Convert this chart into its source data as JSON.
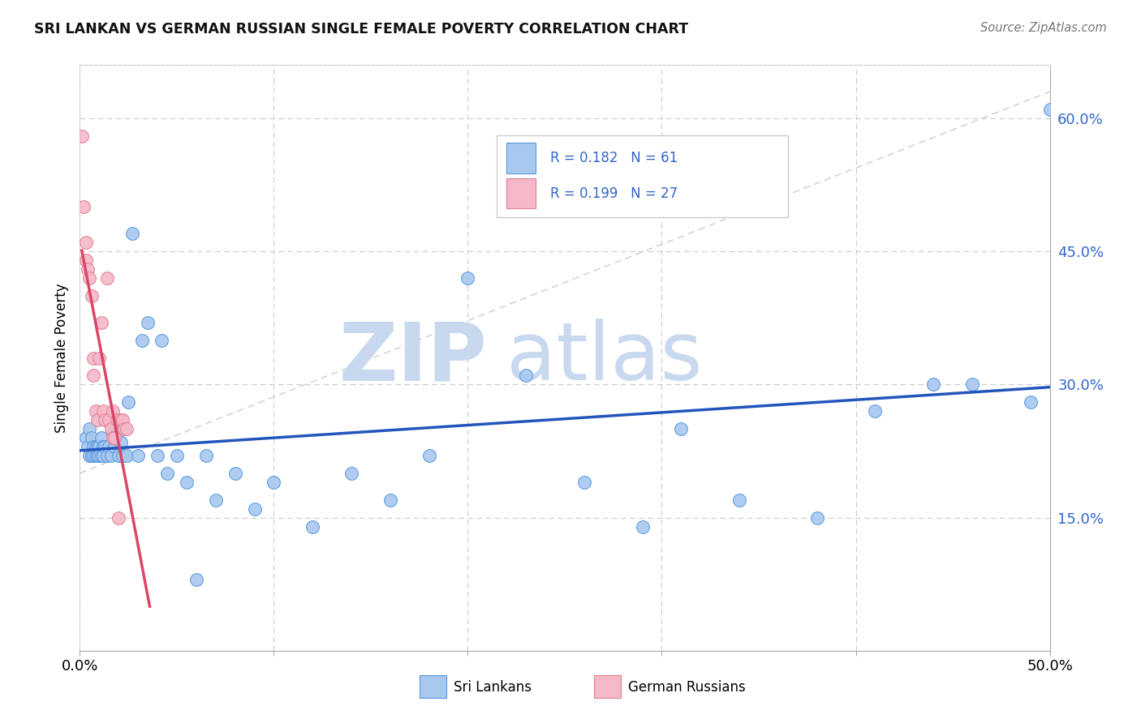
{
  "title": "SRI LANKAN VS GERMAN RUSSIAN SINGLE FEMALE POVERTY CORRELATION CHART",
  "source": "Source: ZipAtlas.com",
  "ylabel": "Single Female Poverty",
  "right_yticks": [
    "60.0%",
    "45.0%",
    "30.0%",
    "15.0%"
  ],
  "right_ytick_vals": [
    0.6,
    0.45,
    0.3,
    0.15
  ],
  "legend_blue_r": "R = 0.182",
  "legend_blue_n": "N = 61",
  "legend_pink_r": "R = 0.199",
  "legend_pink_n": "N = 27",
  "legend_label_blue": "Sri Lankans",
  "legend_label_pink": "German Russians",
  "blue_scatter_color": "#a8c8f0",
  "pink_scatter_color": "#f5b8c8",
  "blue_edge_color": "#5599dd",
  "pink_edge_color": "#e08090",
  "line_blue_color": "#2255bb",
  "line_pink_color": "#dd4466",
  "line_dashed_color": "#cccccc",
  "watermark_zip_color": "#c8d8ee",
  "watermark_atlas_color": "#c8d8ee",
  "grid_color": "#cccccc",
  "title_color": "#111111",
  "source_color": "#777777",
  "right_axis_color": "#3366cc",
  "xlim": [
    0.0,
    0.5
  ],
  "ylim": [
    0.0,
    0.66
  ],
  "sri_lankans_x": [
    0.003,
    0.004,
    0.005,
    0.005,
    0.006,
    0.006,
    0.007,
    0.007,
    0.008,
    0.008,
    0.009,
    0.009,
    0.01,
    0.01,
    0.011,
    0.011,
    0.012,
    0.012,
    0.013,
    0.014,
    0.015,
    0.016,
    0.017,
    0.018,
    0.019,
    0.02,
    0.021,
    0.022,
    0.024,
    0.025,
    0.027,
    0.03,
    0.032,
    0.035,
    0.04,
    0.042,
    0.045,
    0.05,
    0.055,
    0.06,
    0.065,
    0.07,
    0.08,
    0.09,
    0.1,
    0.12,
    0.14,
    0.16,
    0.18,
    0.2,
    0.23,
    0.26,
    0.29,
    0.31,
    0.34,
    0.38,
    0.41,
    0.44,
    0.46,
    0.49,
    0.5
  ],
  "sri_lankans_y": [
    0.24,
    0.23,
    0.25,
    0.22,
    0.24,
    0.22,
    0.23,
    0.22,
    0.23,
    0.22,
    0.23,
    0.22,
    0.23,
    0.22,
    0.24,
    0.22,
    0.23,
    0.22,
    0.23,
    0.22,
    0.23,
    0.22,
    0.245,
    0.23,
    0.245,
    0.22,
    0.235,
    0.22,
    0.22,
    0.28,
    0.47,
    0.22,
    0.35,
    0.37,
    0.22,
    0.35,
    0.2,
    0.22,
    0.19,
    0.08,
    0.22,
    0.17,
    0.2,
    0.16,
    0.19,
    0.14,
    0.2,
    0.17,
    0.22,
    0.42,
    0.31,
    0.19,
    0.14,
    0.25,
    0.17,
    0.15,
    0.27,
    0.3,
    0.3,
    0.28,
    0.61
  ],
  "german_russians_x": [
    0.001,
    0.002,
    0.003,
    0.003,
    0.004,
    0.005,
    0.006,
    0.007,
    0.007,
    0.008,
    0.009,
    0.01,
    0.011,
    0.012,
    0.013,
    0.014,
    0.015,
    0.016,
    0.017,
    0.017,
    0.018,
    0.019,
    0.02,
    0.021,
    0.022,
    0.023,
    0.024
  ],
  "german_russians_y": [
    0.58,
    0.5,
    0.46,
    0.44,
    0.43,
    0.42,
    0.4,
    0.33,
    0.31,
    0.27,
    0.26,
    0.33,
    0.37,
    0.27,
    0.26,
    0.42,
    0.26,
    0.25,
    0.27,
    0.24,
    0.24,
    0.26,
    0.15,
    0.26,
    0.26,
    0.25,
    0.25
  ]
}
